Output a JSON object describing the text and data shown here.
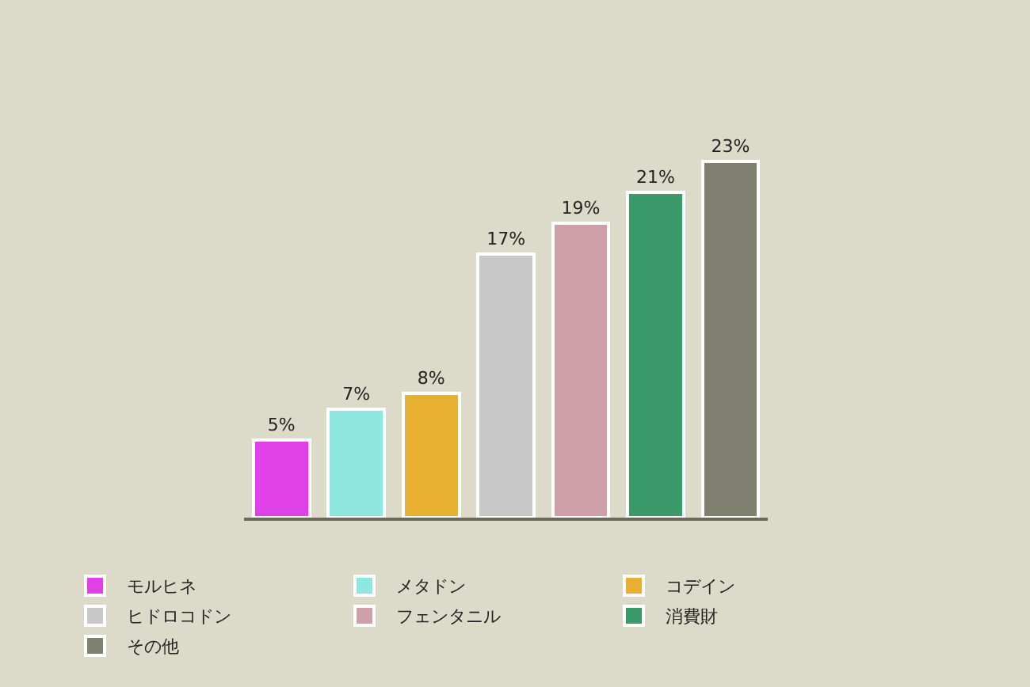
{
  "chart_data": {
    "type": "bar",
    "stacked": true,
    "categories": [
      null,
      null,
      null,
      null,
      null,
      null,
      null
    ],
    "series": [
      {
        "name": "モルヒネ",
        "color": "#e040e8",
        "values": [
          5,
          null,
          null,
          null,
          null,
          null,
          null
        ],
        "value_labels": [
          "5%",
          null,
          null,
          null,
          null,
          null,
          null
        ]
      },
      {
        "name": "メタドン",
        "color": "#8ee8e0",
        "values": [
          null,
          7,
          null,
          null,
          null,
          null,
          null
        ],
        "value_labels": [
          null,
          "7%",
          null,
          null,
          null,
          null,
          null
        ]
      },
      {
        "name": "コデイン",
        "color": "#e8b030",
        "values": [
          null,
          null,
          8,
          null,
          null,
          null,
          null
        ],
        "value_labels": [
          null,
          null,
          "8%",
          null,
          null,
          null,
          null
        ]
      },
      {
        "name": "ヒドロコドン",
        "color": "#c8c8c8",
        "values": [
          null,
          null,
          null,
          17,
          null,
          null,
          null
        ],
        "value_labels": [
          null,
          null,
          null,
          "17%",
          null,
          null,
          null
        ]
      },
      {
        "name": "フェンタニル",
        "color": "#d0a0a8",
        "values": [
          null,
          null,
          null,
          null,
          19,
          null,
          null
        ],
        "value_labels": [
          null,
          null,
          null,
          null,
          "19%",
          null,
          null
        ]
      },
      {
        "name": "消費財",
        "color": "#3a9a6a",
        "values": [
          null,
          null,
          null,
          null,
          null,
          21,
          null
        ],
        "value_labels": [
          null,
          null,
          null,
          null,
          null,
          "21%",
          null
        ]
      },
      {
        "name": "その他",
        "color": "#808070",
        "values": [
          null,
          null,
          null,
          null,
          null,
          null,
          23
        ],
        "value_labels": [
          null,
          null,
          null,
          null,
          null,
          null,
          "23%"
        ]
      }
    ],
    "legend": "bottom",
    "grid": false,
    "tick_labels": false
  }
}
